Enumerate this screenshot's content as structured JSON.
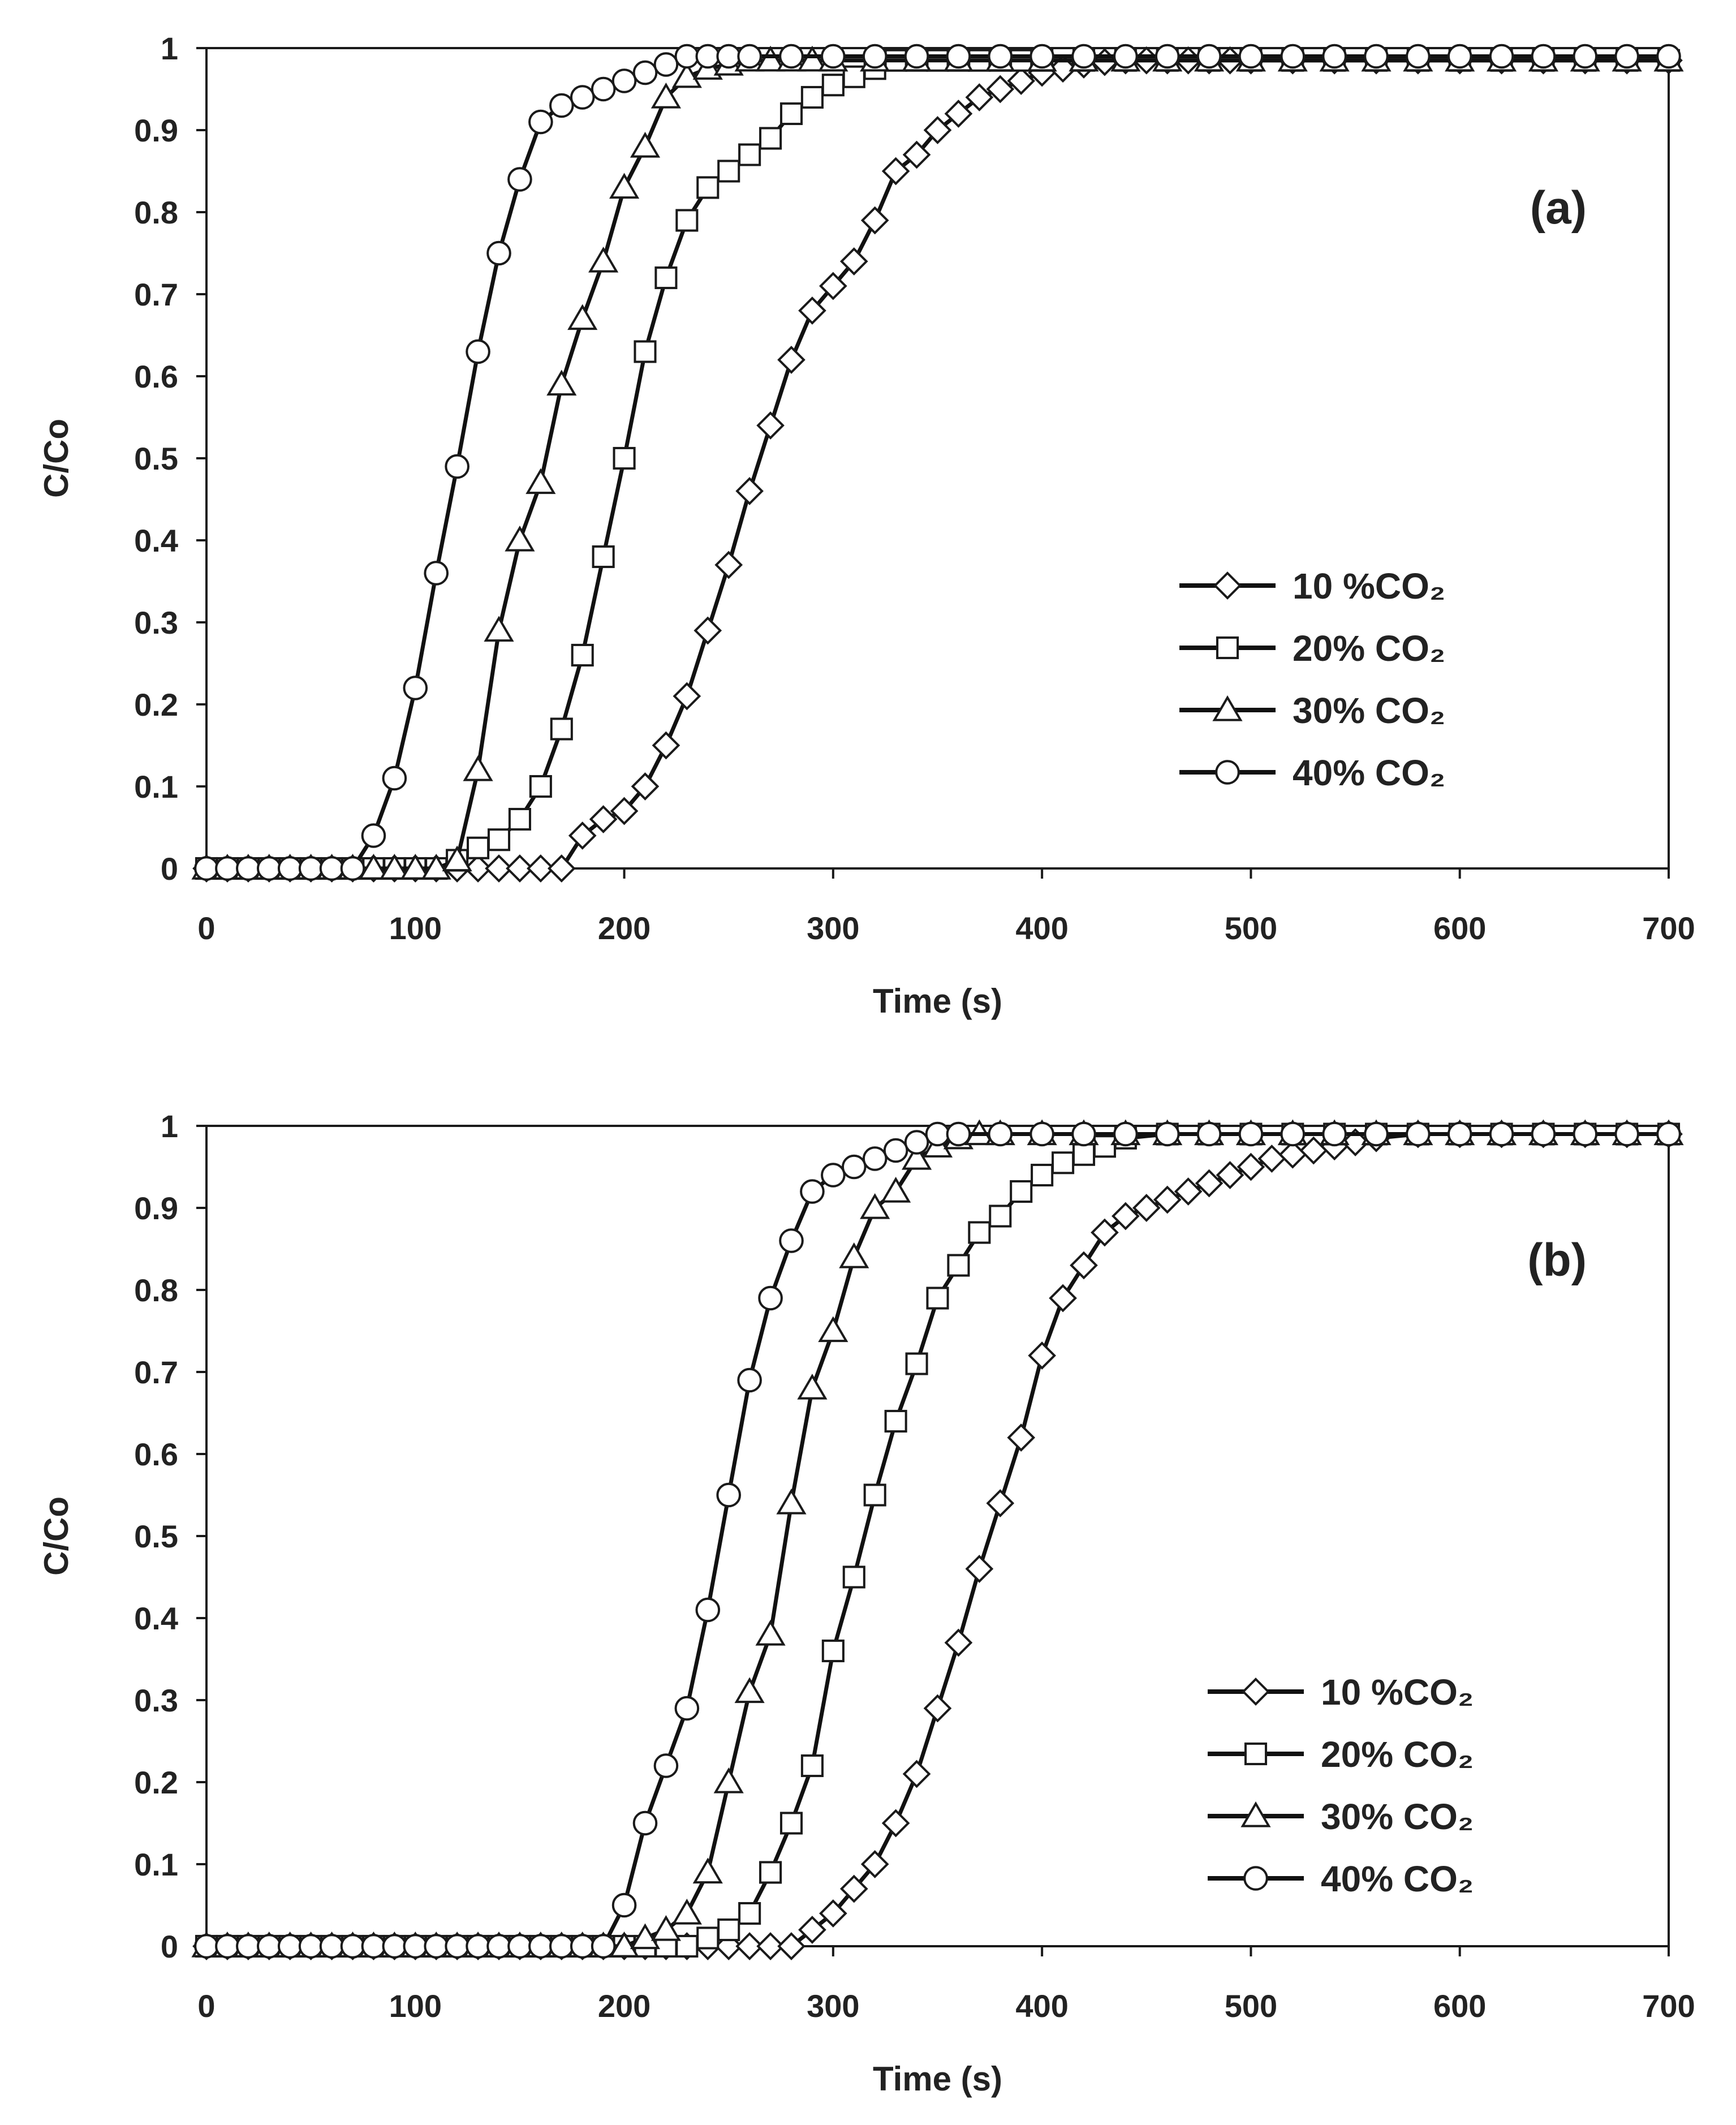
{
  "chart_data": [
    {
      "type": "line",
      "title": "",
      "panel_label": "(a)",
      "xlabel": "Time (s)",
      "ylabel": "C/Co",
      "xlim": [
        0,
        700
      ],
      "ylim": [
        0,
        1
      ],
      "xticks": [
        "0",
        "100",
        "200",
        "300",
        "400",
        "500",
        "600",
        "700"
      ],
      "yticks": [
        "0",
        "0.1",
        "0.2",
        "0.3",
        "0.4",
        "0.5",
        "0.6",
        "0.7",
        "0.8",
        "0.9",
        "1"
      ],
      "legend_position": "center-right",
      "series": [
        {
          "name": "10 %CO₂",
          "marker": "diamond",
          "x": [
            0,
            10,
            20,
            30,
            40,
            50,
            60,
            70,
            80,
            90,
            100,
            110,
            120,
            130,
            140,
            150,
            160,
            170,
            180,
            190,
            200,
            210,
            220,
            230,
            240,
            250,
            260,
            270,
            280,
            290,
            300,
            310,
            320,
            330,
            340,
            350,
            360,
            370,
            380,
            390,
            400,
            410,
            420,
            430,
            440,
            450,
            460,
            470,
            480,
            490,
            500,
            520,
            540,
            560,
            580,
            600,
            620,
            640,
            660,
            680,
            700
          ],
          "y": [
            0,
            0,
            0,
            0,
            0,
            0,
            0,
            0,
            0,
            0,
            0,
            0,
            0,
            0,
            0,
            0,
            0,
            0,
            0.04,
            0.06,
            0.07,
            0.1,
            0.15,
            0.21,
            0.29,
            0.37,
            0.46,
            0.54,
            0.62,
            0.68,
            0.71,
            0.74,
            0.79,
            0.85,
            0.87,
            0.9,
            0.92,
            0.94,
            0.95,
            0.96,
            0.97,
            0.975,
            0.98,
            0.983,
            0.985,
            0.985,
            0.985,
            0.985,
            0.985,
            0.985,
            0.985,
            0.985,
            0.985,
            0.985,
            0.985,
            0.985,
            0.985,
            0.985,
            0.985,
            0.985,
            0.985
          ]
        },
        {
          "name": "20% CO₂",
          "marker": "square",
          "x": [
            0,
            10,
            20,
            30,
            40,
            50,
            60,
            70,
            80,
            90,
            100,
            110,
            120,
            130,
            140,
            150,
            160,
            170,
            180,
            190,
            200,
            210,
            220,
            230,
            240,
            250,
            260,
            270,
            280,
            290,
            300,
            310,
            320,
            330,
            340,
            350,
            360,
            370,
            380,
            390,
            400,
            420,
            440,
            460,
            480,
            500,
            520,
            540,
            560,
            580,
            600,
            620,
            640,
            660,
            680,
            700
          ],
          "y": [
            0,
            0,
            0,
            0,
            0,
            0,
            0,
            0,
            0,
            0,
            0,
            0,
            0.01,
            0.025,
            0.035,
            0.06,
            0.1,
            0.17,
            0.26,
            0.38,
            0.5,
            0.63,
            0.72,
            0.79,
            0.83,
            0.85,
            0.87,
            0.89,
            0.92,
            0.94,
            0.955,
            0.965,
            0.975,
            0.985,
            0.985,
            0.985,
            0.985,
            0.985,
            0.985,
            0.985,
            0.985,
            0.985,
            0.985,
            0.985,
            0.985,
            0.985,
            0.985,
            0.985,
            0.985,
            0.985,
            0.985,
            0.985,
            0.985,
            0.985,
            0.985,
            0.985
          ]
        },
        {
          "name": "30% CO₂",
          "marker": "triangle",
          "x": [
            0,
            10,
            20,
            30,
            40,
            50,
            60,
            70,
            80,
            90,
            100,
            110,
            120,
            130,
            140,
            150,
            160,
            170,
            180,
            190,
            200,
            210,
            220,
            230,
            240,
            250,
            260,
            270,
            280,
            290,
            300,
            320,
            340,
            360,
            380,
            400,
            420,
            440,
            460,
            480,
            500,
            520,
            540,
            560,
            580,
            600,
            620,
            640,
            660,
            680,
            700
          ],
          "y": [
            0,
            0,
            0,
            0,
            0,
            0,
            0,
            0,
            0,
            0,
            0,
            0,
            0.01,
            0.12,
            0.29,
            0.4,
            0.47,
            0.59,
            0.67,
            0.74,
            0.83,
            0.88,
            0.94,
            0.965,
            0.975,
            0.98,
            0.985,
            0.985,
            0.985,
            0.985,
            0.985,
            0.985,
            0.985,
            0.985,
            0.985,
            0.985,
            0.985,
            0.985,
            0.985,
            0.985,
            0.985,
            0.985,
            0.985,
            0.985,
            0.985,
            0.985,
            0.985,
            0.985,
            0.985,
            0.985,
            0.985
          ]
        },
        {
          "name": "40% CO₂",
          "marker": "circle",
          "x": [
            0,
            10,
            20,
            30,
            40,
            50,
            60,
            70,
            80,
            90,
            100,
            110,
            120,
            130,
            140,
            150,
            160,
            170,
            180,
            190,
            200,
            210,
            220,
            230,
            240,
            250,
            260,
            280,
            300,
            320,
            340,
            360,
            380,
            400,
            420,
            440,
            460,
            480,
            500,
            520,
            540,
            560,
            580,
            600,
            620,
            640,
            660,
            680,
            700
          ],
          "y": [
            0,
            0,
            0,
            0,
            0,
            0,
            0,
            0,
            0.04,
            0.11,
            0.22,
            0.36,
            0.49,
            0.63,
            0.75,
            0.84,
            0.91,
            0.93,
            0.94,
            0.95,
            0.96,
            0.97,
            0.98,
            0.99,
            0.99,
            0.99,
            0.99,
            0.99,
            0.99,
            0.99,
            0.99,
            0.99,
            0.99,
            0.99,
            0.99,
            0.99,
            0.99,
            0.99,
            0.99,
            0.99,
            0.99,
            0.99,
            0.99,
            0.99,
            0.99,
            0.99,
            0.99,
            0.99,
            0.99
          ]
        }
      ]
    },
    {
      "type": "line",
      "title": "",
      "panel_label": "(b)",
      "xlabel": "Time (s)",
      "ylabel": "C/Co",
      "xlim": [
        0,
        700
      ],
      "ylim": [
        0,
        1
      ],
      "xticks": [
        "0",
        "100",
        "200",
        "300",
        "400",
        "500",
        "600",
        "700"
      ],
      "yticks": [
        "0",
        "0.1",
        "0.2",
        "0.3",
        "0.4",
        "0.5",
        "0.6",
        "0.7",
        "0.8",
        "0.9",
        "1"
      ],
      "legend_position": "bottom-right",
      "series": [
        {
          "name": "10 %CO₂",
          "marker": "diamond",
          "x": [
            0,
            10,
            20,
            30,
            40,
            50,
            60,
            70,
            80,
            90,
            100,
            110,
            120,
            130,
            140,
            150,
            160,
            170,
            180,
            190,
            200,
            210,
            220,
            230,
            240,
            250,
            260,
            270,
            280,
            290,
            300,
            310,
            320,
            330,
            340,
            350,
            360,
            370,
            380,
            390,
            400,
            410,
            420,
            430,
            440,
            450,
            460,
            470,
            480,
            490,
            500,
            510,
            520,
            530,
            540,
            550,
            560,
            580,
            600,
            620,
            640,
            660,
            680,
            700
          ],
          "y": [
            0,
            0,
            0,
            0,
            0,
            0,
            0,
            0,
            0,
            0,
            0,
            0,
            0,
            0,
            0,
            0,
            0,
            0,
            0,
            0,
            0,
            0,
            0,
            0,
            0,
            0,
            0,
            0,
            0,
            0.02,
            0.04,
            0.07,
            0.1,
            0.15,
            0.21,
            0.29,
            0.37,
            0.46,
            0.54,
            0.62,
            0.72,
            0.79,
            0.83,
            0.87,
            0.89,
            0.9,
            0.91,
            0.92,
            0.93,
            0.94,
            0.95,
            0.96,
            0.965,
            0.97,
            0.975,
            0.98,
            0.985,
            0.99,
            0.99,
            0.99,
            0.99,
            0.99,
            0.99,
            0.99
          ]
        },
        {
          "name": "20% CO₂",
          "marker": "square",
          "x": [
            0,
            10,
            20,
            30,
            40,
            50,
            60,
            70,
            80,
            90,
            100,
            110,
            120,
            130,
            140,
            150,
            160,
            170,
            180,
            190,
            200,
            210,
            220,
            230,
            240,
            250,
            260,
            270,
            280,
            290,
            300,
            310,
            320,
            330,
            340,
            350,
            360,
            370,
            380,
            390,
            400,
            410,
            420,
            430,
            440,
            460,
            480,
            500,
            520,
            540,
            560,
            580,
            600,
            620,
            640,
            660,
            680,
            700
          ],
          "y": [
            0,
            0,
            0,
            0,
            0,
            0,
            0,
            0,
            0,
            0,
            0,
            0,
            0,
            0,
            0,
            0,
            0,
            0,
            0,
            0,
            0,
            0,
            0,
            0,
            0.01,
            0.02,
            0.04,
            0.09,
            0.15,
            0.22,
            0.36,
            0.45,
            0.55,
            0.64,
            0.71,
            0.79,
            0.83,
            0.87,
            0.89,
            0.92,
            0.94,
            0.955,
            0.965,
            0.975,
            0.985,
            0.99,
            0.99,
            0.99,
            0.99,
            0.99,
            0.99,
            0.99,
            0.99,
            0.99,
            0.99,
            0.99,
            0.99,
            0.99
          ]
        },
        {
          "name": "30% CO₂",
          "marker": "triangle",
          "x": [
            0,
            10,
            20,
            30,
            40,
            50,
            60,
            70,
            80,
            90,
            100,
            110,
            120,
            130,
            140,
            150,
            160,
            170,
            180,
            190,
            200,
            210,
            220,
            230,
            240,
            250,
            260,
            270,
            280,
            290,
            300,
            310,
            320,
            330,
            340,
            350,
            360,
            370,
            380,
            400,
            420,
            440,
            460,
            480,
            500,
            520,
            540,
            560,
            580,
            600,
            620,
            640,
            660,
            680,
            700
          ],
          "y": [
            0,
            0,
            0,
            0,
            0,
            0,
            0,
            0,
            0,
            0,
            0,
            0,
            0,
            0,
            0,
            0,
            0,
            0,
            0,
            0,
            0,
            0.01,
            0.02,
            0.04,
            0.09,
            0.2,
            0.31,
            0.38,
            0.54,
            0.68,
            0.75,
            0.84,
            0.9,
            0.92,
            0.96,
            0.975,
            0.985,
            0.99,
            0.99,
            0.99,
            0.99,
            0.99,
            0.99,
            0.99,
            0.99,
            0.99,
            0.99,
            0.99,
            0.99,
            0.99,
            0.99,
            0.99,
            0.99,
            0.99,
            0.99
          ]
        },
        {
          "name": "40% CO₂",
          "marker": "circle",
          "x": [
            0,
            10,
            20,
            30,
            40,
            50,
            60,
            70,
            80,
            90,
            100,
            110,
            120,
            130,
            140,
            150,
            160,
            170,
            180,
            190,
            200,
            210,
            220,
            230,
            240,
            250,
            260,
            270,
            280,
            290,
            300,
            310,
            320,
            330,
            340,
            350,
            360,
            380,
            400,
            420,
            440,
            460,
            480,
            500,
            520,
            540,
            560,
            580,
            600,
            620,
            640,
            660,
            680,
            700
          ],
          "y": [
            0,
            0,
            0,
            0,
            0,
            0,
            0,
            0,
            0,
            0,
            0,
            0,
            0,
            0,
            0,
            0,
            0,
            0,
            0,
            0,
            0.05,
            0.15,
            0.22,
            0.29,
            0.41,
            0.55,
            0.69,
            0.79,
            0.86,
            0.92,
            0.94,
            0.95,
            0.96,
            0.97,
            0.98,
            0.99,
            0.99,
            0.99,
            0.99,
            0.99,
            0.99,
            0.99,
            0.99,
            0.99,
            0.99,
            0.99,
            0.99,
            0.99,
            0.99,
            0.99,
            0.99,
            0.99,
            0.99,
            0.99
          ]
        }
      ]
    }
  ]
}
